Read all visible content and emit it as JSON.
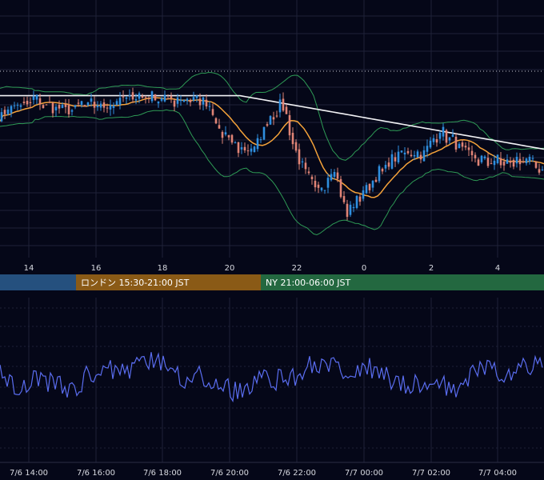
{
  "colors": {
    "background": "#050718",
    "grid": "#1e2238",
    "candle_up": "#2f8fe0",
    "candle_down": "#e08476",
    "ma_long": "#f2f2f5",
    "ma_mid": "#f4a23a",
    "bollinger": "#2e9a55",
    "oscillator": "#5a6df0",
    "price_line": "#c9cbd4",
    "session_tokyo": "#25507e",
    "session_london": "#8a5a16",
    "session_ny": "#236840"
  },
  "chart_data": [
    {
      "type": "candlestick",
      "panel": "price",
      "x_tick_labels": [
        "14",
        "16",
        "18",
        "20",
        "22",
        "0",
        "2",
        "4"
      ],
      "grid": true,
      "overlays": [
        "long moving average",
        "mid moving average",
        "bollinger bands"
      ],
      "series_summary": {
        "start_level": 56,
        "peak_level": 62,
        "low_level": 18,
        "end_level": 30
      }
    },
    {
      "type": "line",
      "panel": "oscillator",
      "x_tick_labels": [
        "7/6 14:00",
        "7/6 16:00",
        "7/6 18:00",
        "7/6 20:00",
        "7/6 22:00",
        "7/7 00:00",
        "7/7 02:00",
        "7/7 04:00"
      ],
      "grid": true
    }
  ],
  "sessions": [
    {
      "label": ""
    },
    {
      "label": "ロンドン 15:30-21:00 JST"
    },
    {
      "label": "NY 21:00-06:00 JST"
    }
  ]
}
